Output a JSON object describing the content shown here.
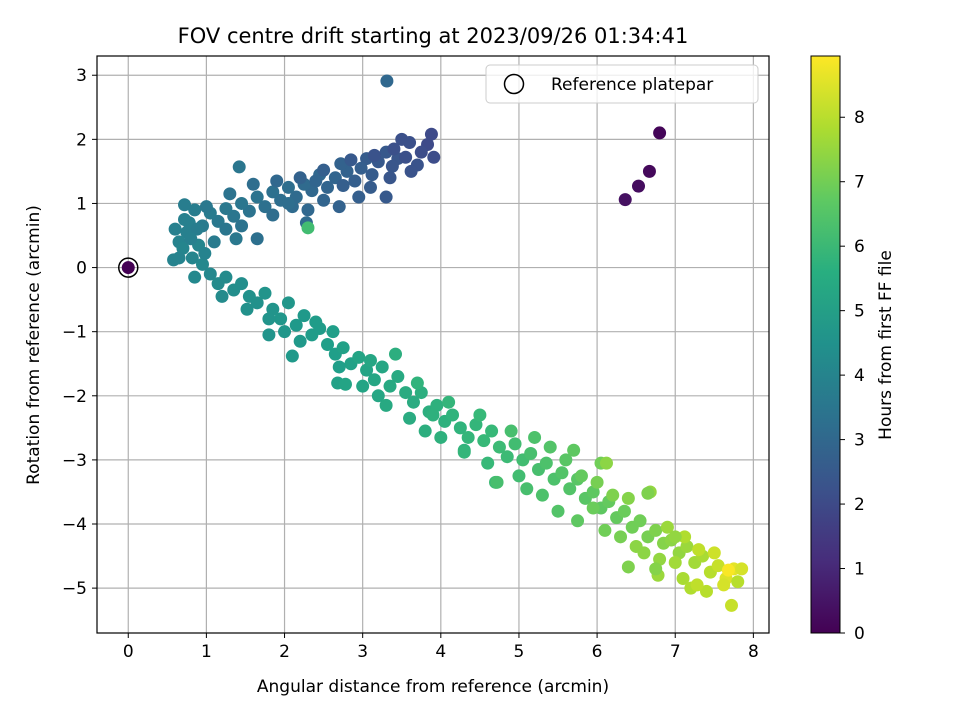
{
  "chart_data": {
    "type": "scatter",
    "title": "FOV centre drift starting at 2023/09/26 01:34:41",
    "xlabel": "Angular distance from reference (arcmin)",
    "ylabel": "Rotation from reference (arcmin)",
    "xlim": [
      -0.4,
      8.2
    ],
    "ylim": [
      -5.7,
      3.3
    ],
    "xticks": [
      0,
      1,
      2,
      3,
      4,
      5,
      6,
      7,
      8
    ],
    "yticks": [
      3,
      2,
      1,
      0,
      -1,
      -2,
      -3,
      -4,
      -5
    ],
    "grid": true,
    "legend": {
      "position": "top-right",
      "entries": [
        "Reference platepar"
      ]
    },
    "colorbar": {
      "label": "Hours from first FF file",
      "range": [
        0,
        8.95
      ],
      "ticks": [
        0,
        1,
        2,
        3,
        4,
        5,
        6,
        7,
        8
      ],
      "colormap": "viridis"
    },
    "reference_point": {
      "x": 0,
      "y": 0
    },
    "points": [
      {
        "x": 6.8,
        "y": 2.1,
        "c": 0.1
      },
      {
        "x": 6.67,
        "y": 1.5,
        "c": 0.2
      },
      {
        "x": 6.53,
        "y": 1.27,
        "c": 0.3
      },
      {
        "x": 6.36,
        "y": 1.06,
        "c": 0.4
      },
      {
        "x": 3.31,
        "y": 2.91,
        "c": 3.0
      },
      {
        "x": 3.88,
        "y": 2.08,
        "c": 2.0
      },
      {
        "x": 3.83,
        "y": 1.92,
        "c": 2.0
      },
      {
        "x": 3.91,
        "y": 1.72,
        "c": 2.1
      },
      {
        "x": 3.75,
        "y": 1.8,
        "c": 2.1
      },
      {
        "x": 3.6,
        "y": 1.95,
        "c": 2.2
      },
      {
        "x": 3.5,
        "y": 2.0,
        "c": 2.2
      },
      {
        "x": 3.7,
        "y": 1.6,
        "c": 2.3
      },
      {
        "x": 3.62,
        "y": 1.5,
        "c": 2.3
      },
      {
        "x": 3.45,
        "y": 1.7,
        "c": 2.4
      },
      {
        "x": 3.38,
        "y": 1.58,
        "c": 2.4
      },
      {
        "x": 3.3,
        "y": 1.8,
        "c": 2.5
      },
      {
        "x": 3.2,
        "y": 1.65,
        "c": 2.5
      },
      {
        "x": 3.12,
        "y": 1.45,
        "c": 2.6
      },
      {
        "x": 3.05,
        "y": 1.7,
        "c": 2.6
      },
      {
        "x": 2.98,
        "y": 1.55,
        "c": 2.7
      },
      {
        "x": 2.9,
        "y": 1.35,
        "c": 2.7
      },
      {
        "x": 2.8,
        "y": 1.5,
        "c": 2.8
      },
      {
        "x": 2.72,
        "y": 1.62,
        "c": 2.8
      },
      {
        "x": 2.65,
        "y": 1.4,
        "c": 2.9
      },
      {
        "x": 2.55,
        "y": 1.25,
        "c": 2.9
      },
      {
        "x": 2.45,
        "y": 1.45,
        "c": 3.0
      },
      {
        "x": 2.35,
        "y": 1.2,
        "c": 3.0
      },
      {
        "x": 2.25,
        "y": 1.3,
        "c": 3.1
      },
      {
        "x": 2.15,
        "y": 1.1,
        "c": 3.1
      },
      {
        "x": 2.05,
        "y": 1.25,
        "c": 3.2
      },
      {
        "x": 1.95,
        "y": 1.05,
        "c": 3.2
      },
      {
        "x": 1.85,
        "y": 1.18,
        "c": 3.3
      },
      {
        "x": 1.75,
        "y": 0.95,
        "c": 3.3
      },
      {
        "x": 1.65,
        "y": 1.1,
        "c": 3.4
      },
      {
        "x": 1.55,
        "y": 0.88,
        "c": 3.4
      },
      {
        "x": 1.45,
        "y": 1.0,
        "c": 3.5
      },
      {
        "x": 1.35,
        "y": 0.8,
        "c": 3.5
      },
      {
        "x": 1.25,
        "y": 0.92,
        "c": 3.6
      },
      {
        "x": 1.15,
        "y": 0.72,
        "c": 3.6
      },
      {
        "x": 1.05,
        "y": 0.85,
        "c": 3.7
      },
      {
        "x": 0.95,
        "y": 0.65,
        "c": 3.7
      },
      {
        "x": 0.85,
        "y": 0.9,
        "c": 3.8
      },
      {
        "x": 0.72,
        "y": 0.98,
        "c": 3.8
      },
      {
        "x": 0.75,
        "y": 0.55,
        "c": 3.9
      },
      {
        "x": 0.6,
        "y": 0.6,
        "c": 3.9
      },
      {
        "x": 1.0,
        "y": 0.95,
        "c": 3.6
      },
      {
        "x": 1.3,
        "y": 1.15,
        "c": 3.4
      },
      {
        "x": 1.6,
        "y": 1.3,
        "c": 3.2
      },
      {
        "x": 1.9,
        "y": 1.35,
        "c": 3.0
      },
      {
        "x": 2.2,
        "y": 1.4,
        "c": 2.8
      },
      {
        "x": 2.5,
        "y": 1.52,
        "c": 2.7
      },
      {
        "x": 2.85,
        "y": 1.68,
        "c": 2.5
      },
      {
        "x": 3.15,
        "y": 1.75,
        "c": 2.3
      },
      {
        "x": 3.4,
        "y": 1.85,
        "c": 2.2
      },
      {
        "x": 3.55,
        "y": 1.72,
        "c": 2.2
      },
      {
        "x": 3.35,
        "y": 1.4,
        "c": 2.4
      },
      {
        "x": 3.3,
        "y": 1.1,
        "c": 2.5
      },
      {
        "x": 3.1,
        "y": 1.25,
        "c": 2.6
      },
      {
        "x": 2.95,
        "y": 1.1,
        "c": 2.7
      },
      {
        "x": 2.7,
        "y": 0.95,
        "c": 2.8
      },
      {
        "x": 2.5,
        "y": 1.05,
        "c": 2.9
      },
      {
        "x": 2.3,
        "y": 0.9,
        "c": 3.0
      },
      {
        "x": 2.1,
        "y": 0.95,
        "c": 3.1
      },
      {
        "x": 1.85,
        "y": 0.82,
        "c": 3.2
      },
      {
        "x": 1.65,
        "y": 0.45,
        "c": 3.3
      },
      {
        "x": 1.45,
        "y": 0.65,
        "c": 3.4
      },
      {
        "x": 1.25,
        "y": 0.6,
        "c": 3.5
      },
      {
        "x": 1.42,
        "y": 1.57,
        "c": 3.5
      },
      {
        "x": 1.38,
        "y": 0.45,
        "c": 3.6
      },
      {
        "x": 2.28,
        "y": 0.7,
        "c": 3.1
      },
      {
        "x": 2.05,
        "y": 1.0,
        "c": 3.2
      },
      {
        "x": 2.4,
        "y": 1.35,
        "c": 2.9
      },
      {
        "x": 2.75,
        "y": 1.28,
        "c": 2.7
      },
      {
        "x": 0.78,
        "y": 0.7,
        "c": 3.9
      },
      {
        "x": 0.65,
        "y": 0.4,
        "c": 4.0
      },
      {
        "x": 0.58,
        "y": 0.12,
        "c": 4.0
      },
      {
        "x": 0.7,
        "y": 0.3,
        "c": 4.1
      },
      {
        "x": 0.82,
        "y": 0.15,
        "c": 4.1
      },
      {
        "x": 0.9,
        "y": 0.35,
        "c": 4.1
      },
      {
        "x": 0.95,
        "y": 0.05,
        "c": 4.2
      },
      {
        "x": 1.05,
        "y": -0.1,
        "c": 4.2
      },
      {
        "x": 0.85,
        "y": -0.15,
        "c": 4.2
      },
      {
        "x": 1.15,
        "y": -0.25,
        "c": 4.3
      },
      {
        "x": 1.25,
        "y": -0.15,
        "c": 4.3
      },
      {
        "x": 1.35,
        "y": -0.35,
        "c": 4.4
      },
      {
        "x": 1.45,
        "y": -0.25,
        "c": 4.4
      },
      {
        "x": 1.55,
        "y": -0.45,
        "c": 4.5
      },
      {
        "x": 1.65,
        "y": -0.55,
        "c": 4.5
      },
      {
        "x": 1.75,
        "y": -0.4,
        "c": 4.6
      },
      {
        "x": 1.85,
        "y": -0.65,
        "c": 4.6
      },
      {
        "x": 1.95,
        "y": -0.8,
        "c": 4.7
      },
      {
        "x": 2.05,
        "y": -0.55,
        "c": 4.7
      },
      {
        "x": 2.15,
        "y": -0.9,
        "c": 4.8
      },
      {
        "x": 2.25,
        "y": -0.75,
        "c": 4.8
      },
      {
        "x": 2.35,
        "y": -1.05,
        "c": 4.9
      },
      {
        "x": 2.45,
        "y": -0.95,
        "c": 4.9
      },
      {
        "x": 2.55,
        "y": -1.2,
        "c": 5.0
      },
      {
        "x": 2.65,
        "y": -1.35,
        "c": 5.0
      },
      {
        "x": 2.75,
        "y": -1.25,
        "c": 5.1
      },
      {
        "x": 2.85,
        "y": -1.5,
        "c": 5.1
      },
      {
        "x": 2.95,
        "y": -1.4,
        "c": 5.2
      },
      {
        "x": 3.05,
        "y": -1.6,
        "c": 5.2
      },
      {
        "x": 3.15,
        "y": -1.75,
        "c": 5.3
      },
      {
        "x": 3.25,
        "y": -1.55,
        "c": 5.3
      },
      {
        "x": 3.35,
        "y": -1.85,
        "c": 5.4
      },
      {
        "x": 3.45,
        "y": -1.7,
        "c": 5.4
      },
      {
        "x": 3.55,
        "y": -1.95,
        "c": 5.5
      },
      {
        "x": 3.65,
        "y": -2.1,
        "c": 5.5
      },
      {
        "x": 3.75,
        "y": -1.95,
        "c": 5.6
      },
      {
        "x": 3.85,
        "y": -2.25,
        "c": 5.6
      },
      {
        "x": 3.95,
        "y": -2.15,
        "c": 5.7
      },
      {
        "x": 4.05,
        "y": -2.4,
        "c": 5.7
      },
      {
        "x": 4.15,
        "y": -2.3,
        "c": 5.8
      },
      {
        "x": 4.25,
        "y": -2.5,
        "c": 5.8
      },
      {
        "x": 4.35,
        "y": -2.65,
        "c": 5.9
      },
      {
        "x": 4.45,
        "y": -2.45,
        "c": 5.9
      },
      {
        "x": 4.55,
        "y": -2.7,
        "c": 6.0
      },
      {
        "x": 4.65,
        "y": -2.55,
        "c": 6.0
      },
      {
        "x": 4.75,
        "y": -2.8,
        "c": 6.1
      },
      {
        "x": 4.85,
        "y": -2.95,
        "c": 6.1
      },
      {
        "x": 4.95,
        "y": -2.75,
        "c": 6.2
      },
      {
        "x": 5.05,
        "y": -3.0,
        "c": 6.2
      },
      {
        "x": 5.15,
        "y": -2.9,
        "c": 6.3
      },
      {
        "x": 5.25,
        "y": -3.15,
        "c": 6.3
      },
      {
        "x": 5.35,
        "y": -3.05,
        "c": 6.4
      },
      {
        "x": 5.45,
        "y": -3.3,
        "c": 6.4
      },
      {
        "x": 5.55,
        "y": -3.2,
        "c": 6.5
      },
      {
        "x": 5.65,
        "y": -3.45,
        "c": 6.5
      },
      {
        "x": 5.75,
        "y": -3.3,
        "c": 6.6
      },
      {
        "x": 5.85,
        "y": -3.6,
        "c": 6.6
      },
      {
        "x": 5.95,
        "y": -3.5,
        "c": 6.7
      },
      {
        "x": 6.05,
        "y": -3.75,
        "c": 6.7
      },
      {
        "x": 6.15,
        "y": -3.65,
        "c": 6.8
      },
      {
        "x": 6.25,
        "y": -3.9,
        "c": 6.8
      },
      {
        "x": 6.35,
        "y": -3.8,
        "c": 6.9
      },
      {
        "x": 6.45,
        "y": -4.05,
        "c": 7.0
      },
      {
        "x": 6.55,
        "y": -3.95,
        "c": 7.0
      },
      {
        "x": 6.65,
        "y": -4.2,
        "c": 7.1
      },
      {
        "x": 6.75,
        "y": -4.1,
        "c": 7.2
      },
      {
        "x": 6.85,
        "y": -4.3,
        "c": 7.3
      },
      {
        "x": 6.95,
        "y": -4.25,
        "c": 7.4
      },
      {
        "x": 7.05,
        "y": -4.45,
        "c": 7.5
      },
      {
        "x": 7.15,
        "y": -4.35,
        "c": 7.6
      },
      {
        "x": 7.25,
        "y": -4.6,
        "c": 7.7
      },
      {
        "x": 7.35,
        "y": -4.5,
        "c": 7.8
      },
      {
        "x": 7.45,
        "y": -4.75,
        "c": 8.0
      },
      {
        "x": 7.55,
        "y": -4.65,
        "c": 8.2
      },
      {
        "x": 7.65,
        "y": -4.85,
        "c": 8.5
      },
      {
        "x": 7.75,
        "y": -4.7,
        "c": 8.6
      },
      {
        "x": 7.8,
        "y": -4.9,
        "c": 8.0
      },
      {
        "x": 7.68,
        "y": -4.72,
        "c": 8.9
      },
      {
        "x": 1.8,
        "y": -0.8,
        "c": 4.6
      },
      {
        "x": 2.2,
        "y": -1.15,
        "c": 4.8
      },
      {
        "x": 2.4,
        "y": -0.85,
        "c": 4.9
      },
      {
        "x": 2.0,
        "y": -1.0,
        "c": 4.7
      },
      {
        "x": 2.1,
        "y": -1.38,
        "c": 4.8
      },
      {
        "x": 1.8,
        "y": -1.05,
        "c": 4.6
      },
      {
        "x": 1.52,
        "y": -0.65,
        "c": 4.5
      },
      {
        "x": 1.2,
        "y": -0.45,
        "c": 4.3
      },
      {
        "x": 2.7,
        "y": -1.55,
        "c": 5.0
      },
      {
        "x": 2.62,
        "y": -1.0,
        "c": 5.0
      },
      {
        "x": 3.0,
        "y": -1.85,
        "c": 5.2
      },
      {
        "x": 2.68,
        "y": -1.8,
        "c": 5.1
      },
      {
        "x": 3.2,
        "y": -2.0,
        "c": 5.3
      },
      {
        "x": 3.1,
        "y": -1.45,
        "c": 5.3
      },
      {
        "x": 3.42,
        "y": -1.35,
        "c": 5.6
      },
      {
        "x": 3.3,
        "y": -2.15,
        "c": 5.4
      },
      {
        "x": 3.6,
        "y": -2.35,
        "c": 5.5
      },
      {
        "x": 3.8,
        "y": -2.55,
        "c": 5.6
      },
      {
        "x": 3.7,
        "y": -1.8,
        "c": 5.8
      },
      {
        "x": 4.1,
        "y": -2.1,
        "c": 5.9
      },
      {
        "x": 4.0,
        "y": -2.65,
        "c": 5.7
      },
      {
        "x": 4.3,
        "y": -2.85,
        "c": 5.8
      },
      {
        "x": 4.5,
        "y": -2.3,
        "c": 6.0
      },
      {
        "x": 4.7,
        "y": -3.35,
        "c": 6.1
      },
      {
        "x": 4.6,
        "y": -3.05,
        "c": 6.0
      },
      {
        "x": 4.9,
        "y": -2.55,
        "c": 6.3
      },
      {
        "x": 5.0,
        "y": -3.25,
        "c": 6.2
      },
      {
        "x": 5.1,
        "y": -3.45,
        "c": 6.3
      },
      {
        "x": 5.2,
        "y": -2.65,
        "c": 6.4
      },
      {
        "x": 5.4,
        "y": -2.8,
        "c": 6.5
      },
      {
        "x": 5.3,
        "y": -3.55,
        "c": 6.4
      },
      {
        "x": 5.5,
        "y": -3.8,
        "c": 6.5
      },
      {
        "x": 5.6,
        "y": -3.0,
        "c": 6.6
      },
      {
        "x": 5.7,
        "y": -2.85,
        "c": 6.7
      },
      {
        "x": 5.8,
        "y": -3.25,
        "c": 6.8
      },
      {
        "x": 5.75,
        "y": -3.95,
        "c": 6.7
      },
      {
        "x": 5.95,
        "y": -3.75,
        "c": 6.9
      },
      {
        "x": 6.05,
        "y": -3.05,
        "c": 7.0
      },
      {
        "x": 6.0,
        "y": -3.35,
        "c": 7.1
      },
      {
        "x": 6.2,
        "y": -3.55,
        "c": 7.2
      },
      {
        "x": 6.1,
        "y": -4.1,
        "c": 7.0
      },
      {
        "x": 6.3,
        "y": -4.2,
        "c": 7.1
      },
      {
        "x": 6.4,
        "y": -3.6,
        "c": 7.3
      },
      {
        "x": 6.5,
        "y": -4.35,
        "c": 7.4
      },
      {
        "x": 6.68,
        "y": -3.5,
        "c": 7.5
      },
      {
        "x": 6.6,
        "y": -4.45,
        "c": 7.4
      },
      {
        "x": 6.8,
        "y": -4.55,
        "c": 7.5
      },
      {
        "x": 6.78,
        "y": -4.8,
        "c": 7.6
      },
      {
        "x": 6.9,
        "y": -4.05,
        "c": 7.6
      },
      {
        "x": 7.0,
        "y": -4.6,
        "c": 7.7
      },
      {
        "x": 7.12,
        "y": -4.2,
        "c": 7.9
      },
      {
        "x": 7.1,
        "y": -4.85,
        "c": 7.8
      },
      {
        "x": 7.2,
        "y": -5.0,
        "c": 7.9
      },
      {
        "x": 7.3,
        "y": -4.4,
        "c": 8.1
      },
      {
        "x": 7.4,
        "y": -5.05,
        "c": 8.0
      },
      {
        "x": 7.5,
        "y": -4.45,
        "c": 8.3
      },
      {
        "x": 7.62,
        "y": -4.95,
        "c": 8.4
      },
      {
        "x": 7.72,
        "y": -5.27,
        "c": 8.2
      },
      {
        "x": 7.85,
        "y": -4.7,
        "c": 8.4
      },
      {
        "x": 7.28,
        "y": -4.95,
        "c": 8.1
      },
      {
        "x": 6.4,
        "y": -4.67,
        "c": 7.2
      },
      {
        "x": 6.75,
        "y": -4.7,
        "c": 7.3
      },
      {
        "x": 7.0,
        "y": -4.2,
        "c": 7.5
      },
      {
        "x": 4.72,
        "y": -3.35,
        "c": 6.3
      },
      {
        "x": 4.3,
        "y": -2.88,
        "c": 5.9
      },
      {
        "x": 3.9,
        "y": -2.3,
        "c": 5.7
      },
      {
        "x": 2.78,
        "y": -1.82,
        "c": 5.2
      },
      {
        "x": 2.3,
        "y": 0.62,
        "c": 6.2
      },
      {
        "x": 6.12,
        "y": -3.05,
        "c": 7.4
      },
      {
        "x": 6.65,
        "y": -3.52,
        "c": 7.2
      },
      {
        "x": 0.72,
        "y": 0.75,
        "c": 3.9
      },
      {
        "x": 0.65,
        "y": 0.15,
        "c": 4.0
      },
      {
        "x": 0.88,
        "y": 0.6,
        "c": 3.8
      },
      {
        "x": 1.1,
        "y": 0.4,
        "c": 3.7
      },
      {
        "x": 0.98,
        "y": 0.22,
        "c": 4.0
      },
      {
        "x": 0.8,
        "y": 0.45,
        "c": 3.9
      }
    ]
  }
}
